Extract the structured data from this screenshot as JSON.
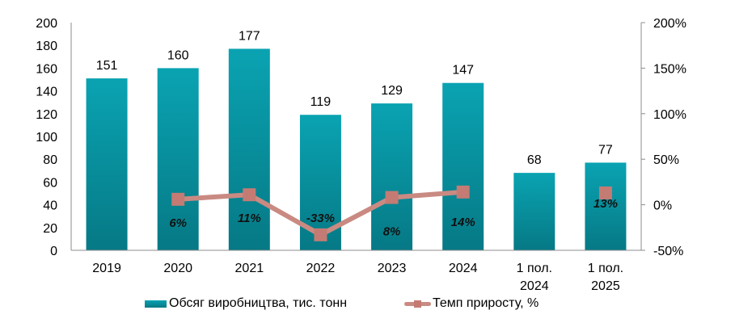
{
  "chart_data": {
    "type": "bar",
    "title": "",
    "xlabel": "",
    "ylabel": "",
    "categories": [
      "2019",
      "2020",
      "2021",
      "2022",
      "2023",
      "2024",
      "1 пол. 2024",
      "1 пол. 2025"
    ],
    "category_lines": [
      [
        "2019"
      ],
      [
        "2020"
      ],
      [
        "2021"
      ],
      [
        "2022"
      ],
      [
        "2023"
      ],
      [
        "2024"
      ],
      [
        "1 пол.",
        "2024"
      ],
      [
        "1 пол.",
        "2025"
      ]
    ],
    "series": [
      {
        "name": "Обсяг виробництва, тис. тонн",
        "type": "bar",
        "axis": "left",
        "color": "#0aa2b1",
        "values": [
          151,
          160,
          177,
          119,
          129,
          147,
          68,
          77
        ],
        "labels": [
          "151",
          "160",
          "177",
          "119",
          "129",
          "147",
          "68",
          "77"
        ]
      },
      {
        "name": "Темп приросту, %",
        "type": "line",
        "axis": "right",
        "color": "#c98a82",
        "values": [
          null,
          6,
          11,
          -33,
          8,
          14,
          null,
          13
        ],
        "labels": [
          "",
          "6%",
          "11%",
          "-33%",
          "8%",
          "14%",
          "",
          "13%"
        ]
      }
    ],
    "y_left": {
      "ylim": [
        0,
        200
      ],
      "ticks": [
        "0",
        "20",
        "40",
        "60",
        "80",
        "100",
        "120",
        "140",
        "160",
        "180",
        "200"
      ]
    },
    "y_right": {
      "ylim": [
        -50,
        200
      ],
      "ticks": [
        "-50%",
        "0%",
        "50%",
        "100%",
        "150%",
        "200%"
      ]
    },
    "grid": false,
    "legend_position": "bottom"
  },
  "legend": {
    "bar_label": "Обсяг виробництва, тис. тонн",
    "line_label": "Темп приросту, %"
  }
}
